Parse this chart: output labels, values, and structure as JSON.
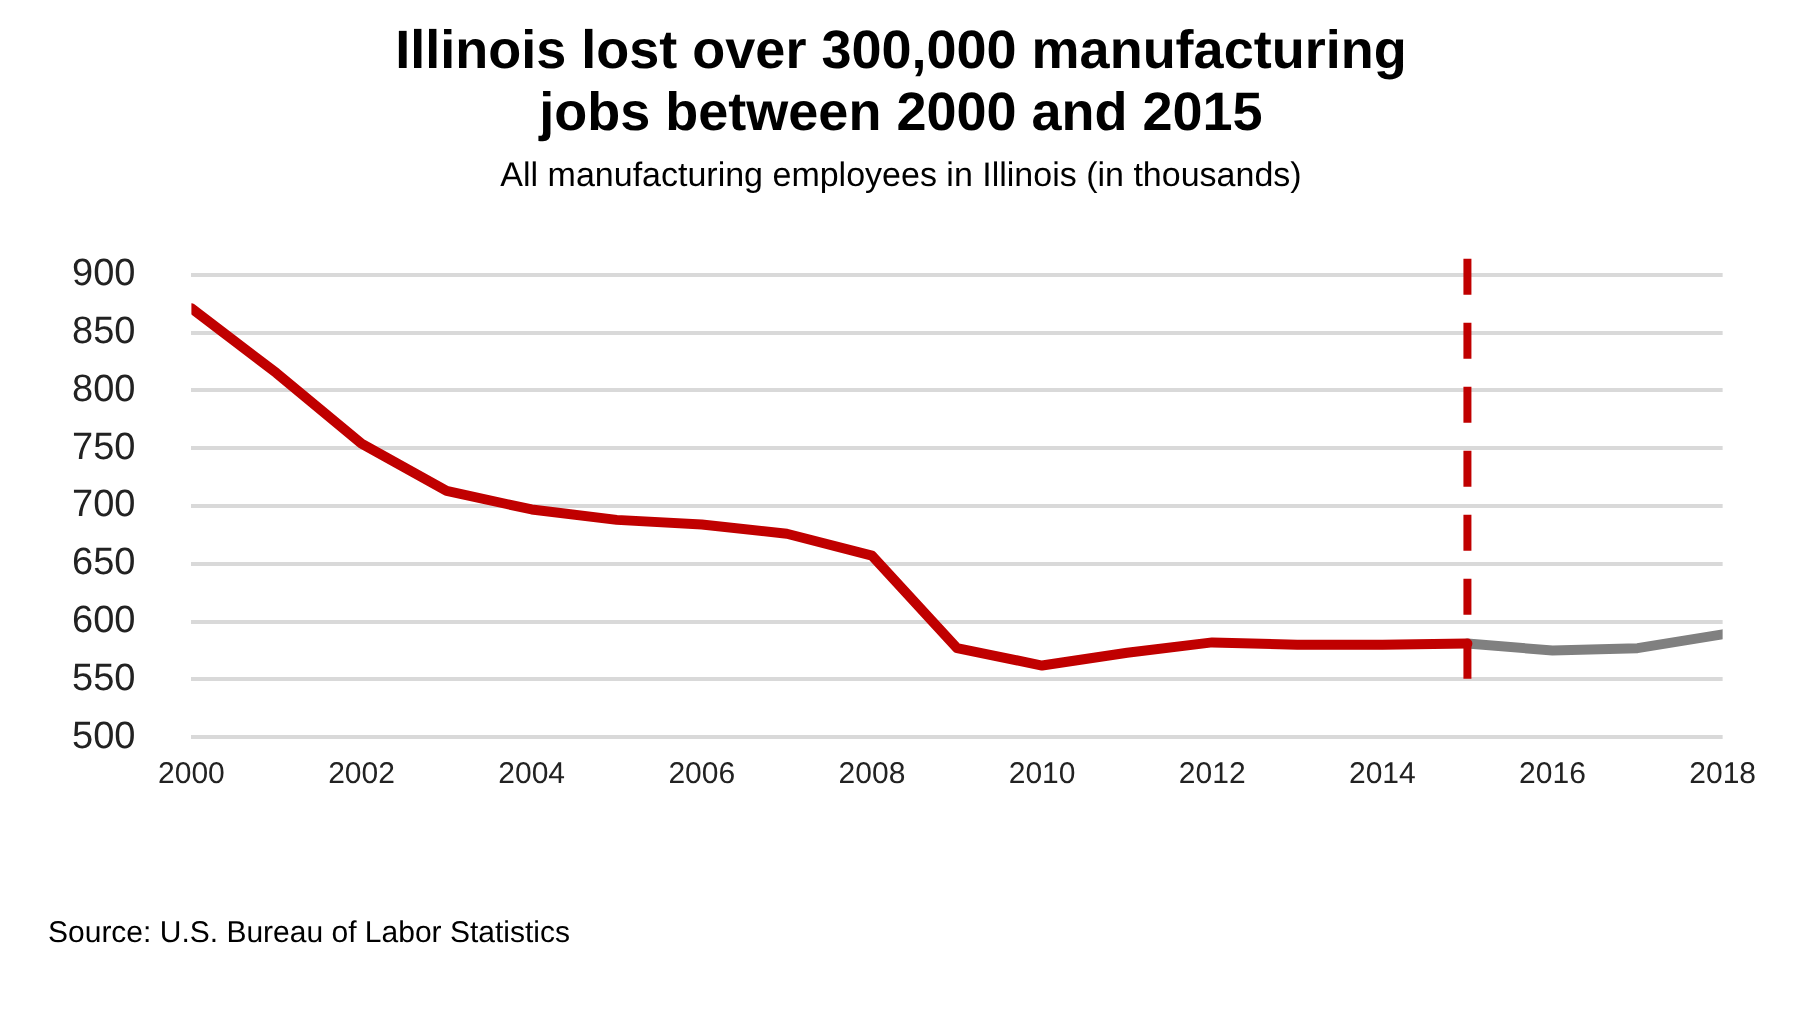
{
  "chart_data": {
    "type": "line",
    "title": "Illinois lost over 300,000 manufacturing jobs between 2000 and 2015",
    "subtitle": "All manufacturing employees in Illinois (in thousands)",
    "series": [
      {
        "color": "#c00000",
        "x": [
          2000,
          2001,
          2002,
          2003,
          2004,
          2005,
          2006,
          2007,
          2008,
          2009,
          2010,
          2011,
          2012,
          2013,
          2014,
          2015
        ],
        "values": [
          871,
          815,
          754,
          713,
          697,
          688,
          684,
          676,
          657,
          577,
          562,
          573,
          582,
          580,
          580,
          581
        ]
      },
      {
        "color": "#808080",
        "x": [
          2015,
          2016,
          2017,
          2018
        ],
        "values": [
          581,
          575,
          577,
          589
        ]
      }
    ],
    "xlim": [
      2000,
      2018
    ],
    "xticks": [
      2000,
      2002,
      2004,
      2006,
      2008,
      2010,
      2012,
      2014,
      2016,
      2018
    ],
    "ylim": [
      500,
      900
    ],
    "yticks": [
      500,
      550,
      600,
      650,
      700,
      750,
      800,
      850,
      900
    ],
    "ref_lines": [
      {
        "axis": "x",
        "value": 2015,
        "color": "#c00000",
        "line_style": "dashed"
      }
    ],
    "grid": "y",
    "legend": false,
    "marker": "none",
    "line_style": "solid",
    "annotations": [
      "Source: U.S. Bureau of Labor Statistics"
    ]
  }
}
